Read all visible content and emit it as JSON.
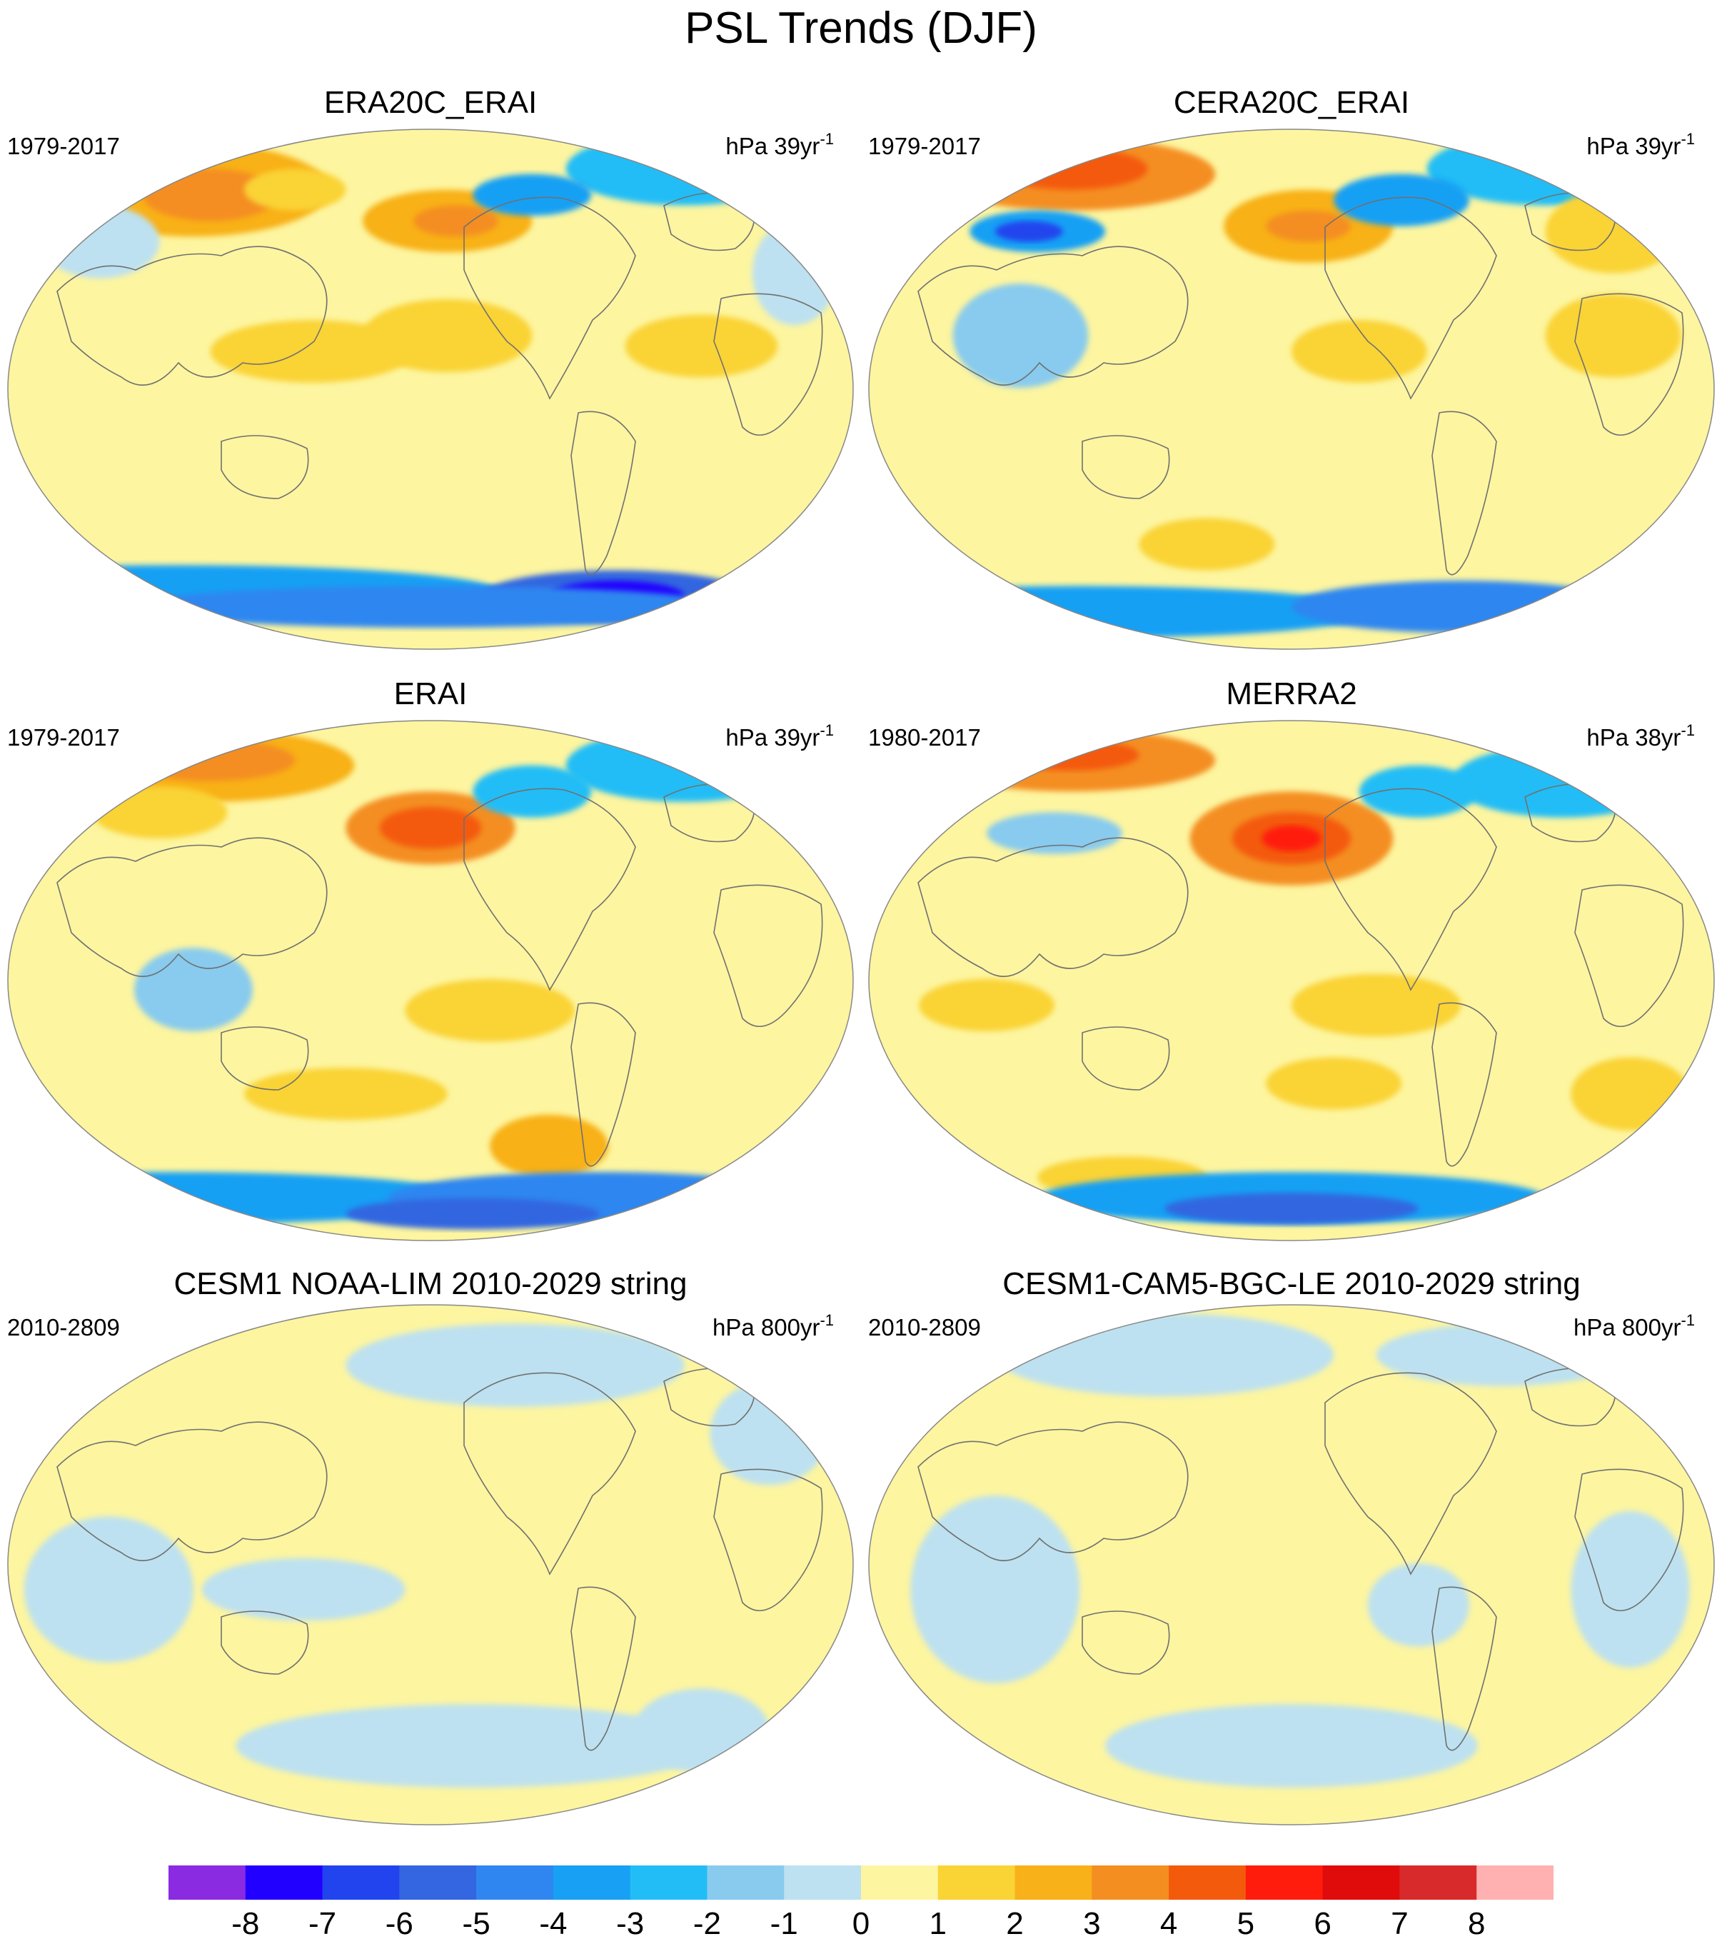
{
  "figure": {
    "title": "PSL Trends (DJF)"
  },
  "panels": [
    {
      "title": "ERA20C_ERAI",
      "period": "1979-2017",
      "units": "hPa 39yr",
      "units_exp": "-1"
    },
    {
      "title": "CERA20C_ERAI",
      "period": "1979-2017",
      "units": "hPa 39yr",
      "units_exp": "-1"
    },
    {
      "title": "ERAI",
      "period": "1979-2017",
      "units": "hPa 39yr",
      "units_exp": "-1"
    },
    {
      "title": "MERRA2",
      "period": "1980-2017",
      "units": "hPa 38yr",
      "units_exp": "-1"
    },
    {
      "title": "CESM1 NOAA-LIM 2010-2029 string",
      "period": "2010-2809",
      "units": "hPa 800yr",
      "units_exp": "-1"
    },
    {
      "title": "CESM1-CAM5-BGC-LE 2010-2029 string",
      "period": "2010-2809",
      "units": "hPa 800yr",
      "units_exp": "-1"
    }
  ],
  "colorbar": {
    "labels": [
      "-8",
      "-7",
      "-6",
      "-5",
      "-4",
      "-3",
      "-2",
      "-1",
      "0",
      "1",
      "2",
      "3",
      "4",
      "5",
      "6",
      "7",
      "8"
    ],
    "colors": [
      "#8a2be2",
      "#2200ff",
      "#2244ee",
      "#3366e0",
      "#2f86f0",
      "#18a0f4",
      "#22bdf6",
      "#88cbee",
      "#bde1f0",
      "#fdf5a0",
      "#fad335",
      "#f8b118",
      "#f48e20",
      "#f45a0c",
      "#ff1c0c",
      "#e00c0c",
      "#d82a2a",
      "#ffb0b0"
    ]
  }
}
